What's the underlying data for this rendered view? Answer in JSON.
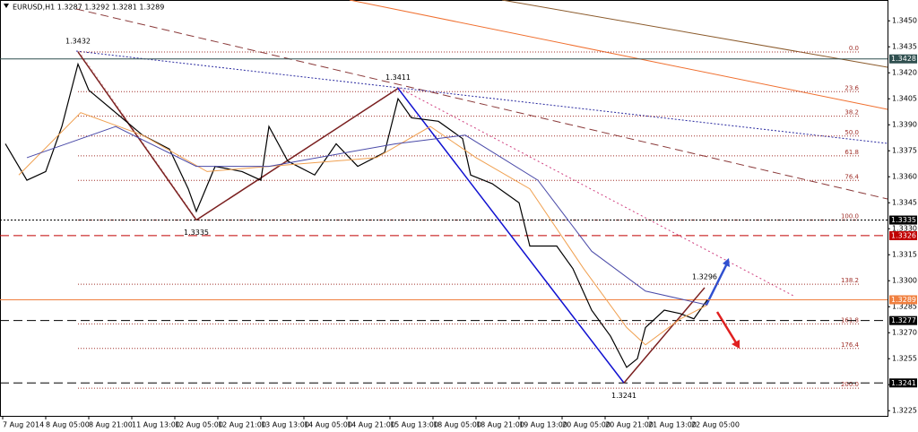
{
  "chart_data": {
    "type": "line",
    "title": "EURUSD,H1 1.3287 1.3292 1.3281 1.3289",
    "xlim": [
      0,
      330
    ],
    "ylim": [
      1.3222,
      1.3462
    ],
    "xticks": [
      {
        "value": 1,
        "label": "7 Aug 2014"
      },
      {
        "value": 17,
        "label": "8 Aug 05:00"
      },
      {
        "value": 33,
        "label": "8 Aug 21:00"
      },
      {
        "value": 49,
        "label": "11 Aug 13:00"
      },
      {
        "value": 65,
        "label": "12 Aug 05:00"
      },
      {
        "value": 81,
        "label": "12 Aug 21:00"
      },
      {
        "value": 97,
        "label": "13 Aug 13:00"
      },
      {
        "value": 113,
        "label": "14 Aug 05:00"
      },
      {
        "value": 129,
        "label": "14 Aug 21:00"
      },
      {
        "value": 145,
        "label": "15 Aug 13:00"
      },
      {
        "value": 161,
        "label": "18 Aug 05:00"
      },
      {
        "value": 177,
        "label": "18 Aug 21:00"
      },
      {
        "value": 193,
        "label": "19 Aug 13:00"
      },
      {
        "value": 209,
        "label": "20 Aug 05:00"
      },
      {
        "value": 225,
        "label": "20 Aug 21:00"
      },
      {
        "value": 241,
        "label": "21 Aug 13:00"
      },
      {
        "value": 257,
        "label": "22 Aug 05:00"
      }
    ],
    "yticks": [
      {
        "value": 1.345,
        "label": "1.3450"
      },
      1.3435,
      {
        "value": 1.342,
        "label": "1.3420"
      },
      1.3405,
      {
        "value": 1.339,
        "label": "1.3390"
      },
      1.3375,
      {
        "value": 1.336,
        "label": "1.3360"
      },
      1.3345,
      {
        "value": 1.333,
        "label": "1.3330"
      },
      1.3315,
      {
        "value": 1.33,
        "label": "1.3300"
      },
      1.3285,
      {
        "value": 1.327,
        "label": "1.3270"
      },
      1.3255,
      {
        "value": 1.324,
        "label": "1.3240"
      },
      1.3225
    ],
    "grid": false,
    "series": [
      {
        "color": "#000000",
        "x": [
          2,
          10,
          17,
          23,
          29,
          33,
          43,
          53,
          63,
          70,
          73,
          80,
          90,
          97,
          100,
          107,
          117,
          125,
          133,
          143,
          148,
          153,
          163,
          172,
          175,
          183,
          193,
          197,
          207,
          213,
          220,
          227,
          233,
          237,
          240,
          247,
          253,
          258,
          263
        ],
        "values": [
          1.3379,
          1.3358,
          1.3363,
          1.3389,
          1.3425,
          1.341,
          1.3397,
          1.3384,
          1.3376,
          1.3353,
          1.334,
          1.3366,
          1.3363,
          1.3358,
          1.3389,
          1.3369,
          1.3361,
          1.3379,
          1.3366,
          1.3374,
          1.3405,
          1.3394,
          1.3392,
          1.3382,
          1.3361,
          1.3356,
          1.3345,
          1.332,
          1.332,
          1.3307,
          1.3283,
          1.3268,
          1.325,
          1.3255,
          1.3273,
          1.3283,
          1.3281,
          1.3278,
          1.3289
        ]
      },
      {
        "color": "#f0a050",
        "x": [
          7,
          30,
          53,
          77,
          100,
          140,
          160,
          177,
          197,
          217,
          233,
          240,
          253,
          263
        ],
        "values": [
          1.3361,
          1.3397,
          1.3384,
          1.3363,
          1.3366,
          1.3371,
          1.3389,
          1.3371,
          1.3353,
          1.3307,
          1.3273,
          1.3263,
          1.3278,
          1.3286
        ]
      },
      {
        "color": "#4a4aa8",
        "x": [
          10,
          43,
          73,
          100,
          147,
          173,
          200,
          220,
          240,
          263
        ],
        "values": [
          1.3371,
          1.3389,
          1.3366,
          1.3366,
          1.3379,
          1.3384,
          1.3358,
          1.3317,
          1.3294,
          1.3286
        ]
      }
    ],
    "pivots": [
      {
        "x": 29,
        "value": 1.3432
      },
      {
        "x": 73,
        "value": 1.3335
      },
      {
        "x": 148,
        "value": 1.3411
      },
      {
        "x": 232,
        "value": 1.3241
      },
      {
        "x": 262,
        "value": 1.3296
      }
    ],
    "fib": {
      "color": "#a0302a",
      "levels": [
        0,
        23.6,
        38.2,
        50,
        61.8,
        76.4,
        100,
        138.2,
        161.8,
        176.4,
        200
      ],
      "level_labels": [
        "0.0",
        "23.6",
        "38.2",
        "50.0",
        "61.8",
        "76.4",
        "100.0",
        "138.2",
        "161.8",
        "176.4",
        "200.0"
      ]
    },
    "price_levels": [
      {
        "value": 1.3428,
        "color": "#2f4f4f"
      },
      {
        "value": 1.3335,
        "color": "#000000"
      },
      {
        "value": 1.3326,
        "color": "#c00000"
      },
      {
        "value": 1.3289,
        "color": "#f08040"
      },
      {
        "value": 1.3277,
        "color": "#000000"
      },
      {
        "value": 1.3241,
        "color": "#000000"
      }
    ]
  }
}
